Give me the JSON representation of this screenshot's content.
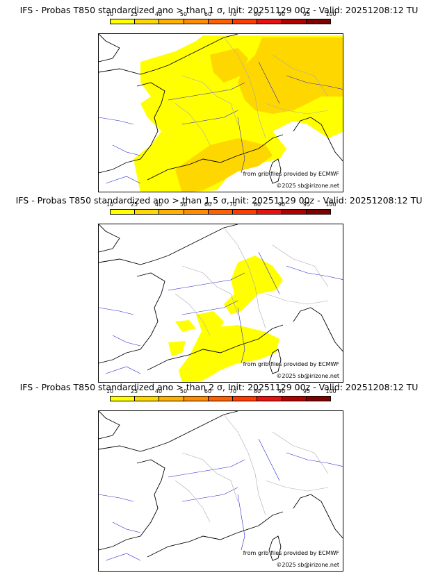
{
  "colorbar": {
    "ticks": [
      "10",
      "25",
      "40",
      "50",
      "60",
      "70",
      "80",
      "90",
      "95",
      "100"
    ],
    "colors": [
      "#ffff00",
      "#ffd700",
      "#ffb000",
      "#ff8c00",
      "#ff6000",
      "#ff3c00",
      "#e81010",
      "#b00000",
      "#800000"
    ]
  },
  "colors": {
    "coast": "#000000",
    "rivers": "#2222cc",
    "borders": "#aaaaaa",
    "prob_low": "#ffff00",
    "prob_mid": "#ffd700"
  },
  "panels": [
    {
      "title": "IFS - Probas T850  standardized ano > than 1 σ, Init: 20251129 00z - Valid: 20251208:12 TU",
      "credit_source": "from grib files provided by ECMWF",
      "credit_copyright": "©2025 sb@irizone.net",
      "coverage": "large"
    },
    {
      "title": "IFS - Probas T850  standardized ano > than 1.5 σ, Init: 20251129 00z - Valid: 20251208:12 TU",
      "credit_source": "from grib files provided by ECMWF",
      "credit_copyright": "©2025 sb@irizone.net",
      "coverage": "medium"
    },
    {
      "title": "IFS - Probas T850  standardized ano > than 2 σ, Init: 20251129 00z - Valid: 20251208:12 TU",
      "credit_source": "from grib files provided by ECMWF",
      "credit_copyright": "©2025 sb@irizone.net",
      "coverage": "none"
    }
  ]
}
